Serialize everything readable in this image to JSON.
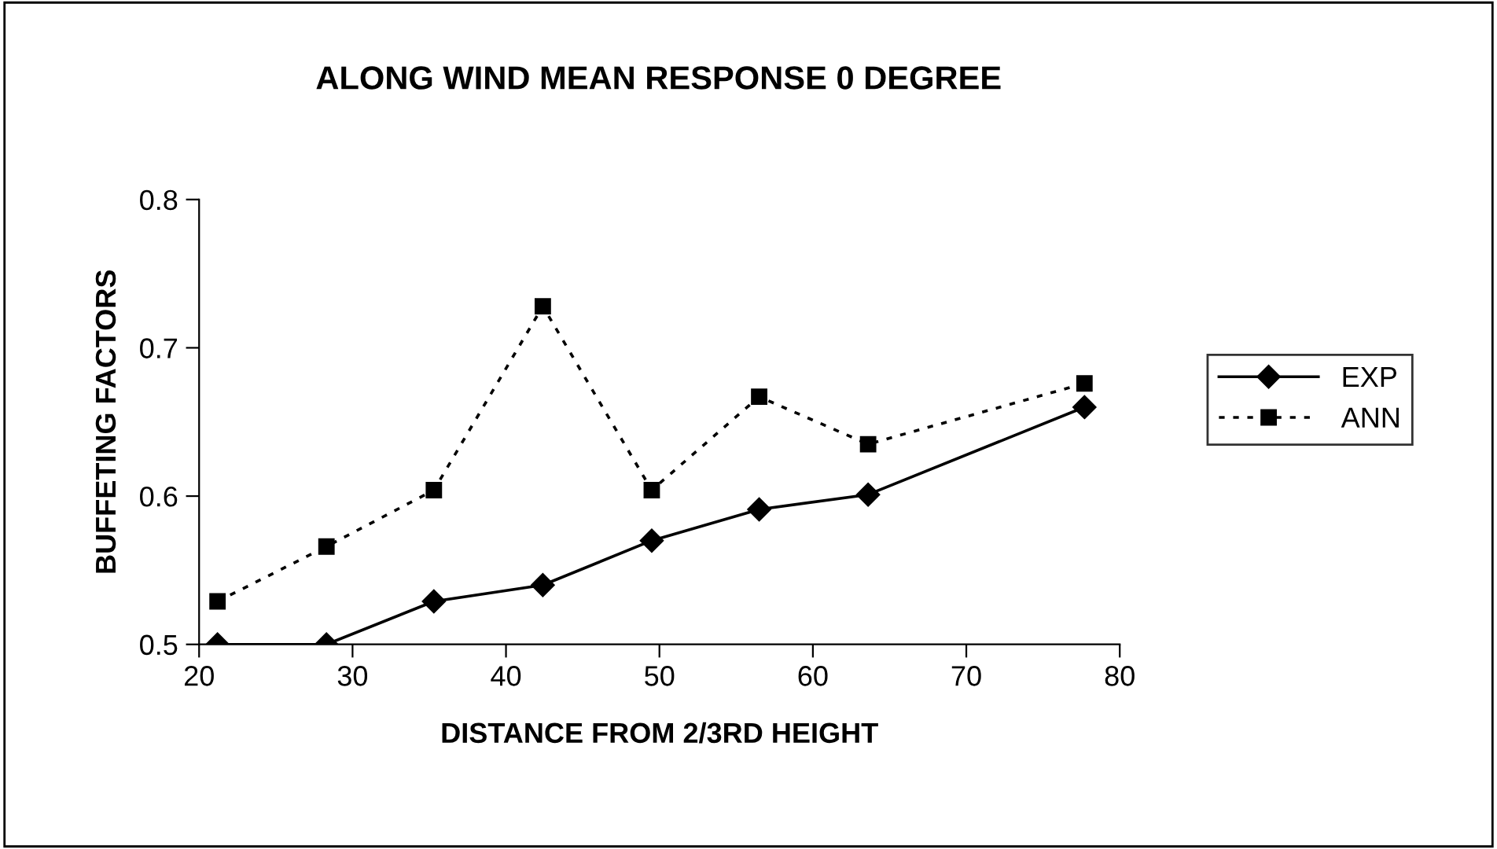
{
  "chart_data": {
    "type": "line",
    "title": "ALONG WIND MEAN RESPONSE 0 DEGREE",
    "xlabel": "DISTANCE FROM 2/3RD HEIGHT",
    "ylabel": "BUFFETING FACTORS",
    "x": [
      21.2,
      28.3,
      35.3,
      42.4,
      49.5,
      56.5,
      63.6,
      77.7
    ],
    "series": [
      {
        "name": "EXP",
        "color": "#000000",
        "marker": "diamond",
        "line_style": "solid",
        "values": [
          0.5,
          0.5,
          0.529,
          0.54,
          0.57,
          0.591,
          0.601,
          0.66
        ]
      },
      {
        "name": "ANN",
        "color": "#000000",
        "marker": "square",
        "line_style": "dotted",
        "values": [
          0.529,
          0.566,
          0.604,
          0.728,
          0.604,
          0.667,
          0.635,
          0.676
        ]
      }
    ],
    "xlim": [
      20,
      80
    ],
    "xticks": [
      20,
      30,
      40,
      50,
      60,
      70,
      80
    ],
    "ylim": [
      0.5,
      0.8
    ],
    "yticks": [
      0.5,
      0.6,
      0.7,
      0.8
    ],
    "grid": false,
    "legend": "right"
  }
}
